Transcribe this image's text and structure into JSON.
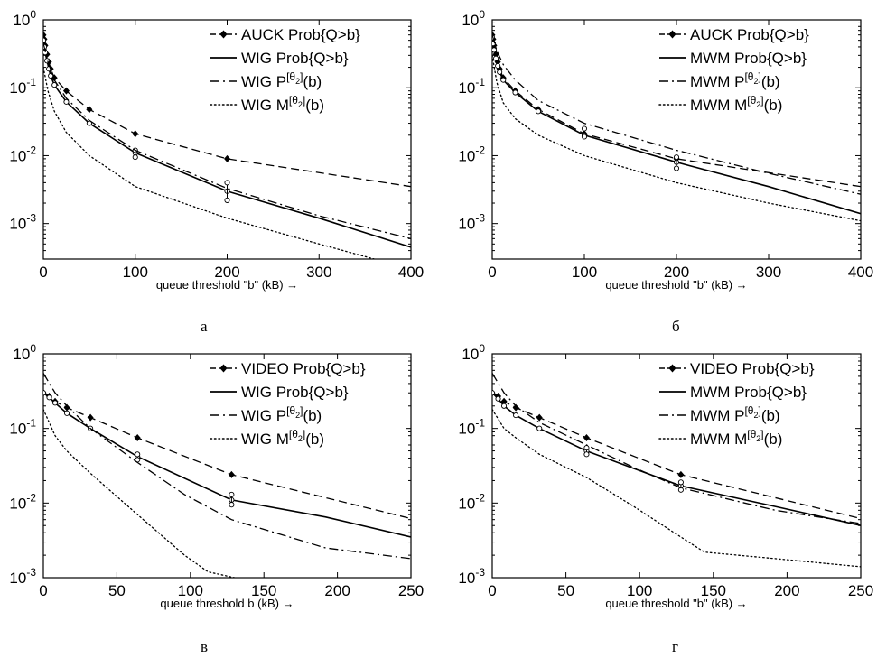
{
  "figure": {
    "captions": [
      "а",
      "б",
      "в",
      "г"
    ]
  },
  "chart_data": [
    {
      "id": "a",
      "type": "line",
      "caption": "а",
      "xlabel": "queue threshold \"b\" (kB) →",
      "ylabel": "",
      "yscale": "log",
      "xlim": [
        0,
        400
      ],
      "ylim": [
        0.0003,
        1
      ],
      "xticks": [
        0,
        100,
        200,
        300,
        400
      ],
      "yticks": [
        {
          "v": 1,
          "exp": "0"
        },
        {
          "v": 0.1,
          "exp": "-1"
        },
        {
          "v": 0.01,
          "exp": "-2"
        },
        {
          "v": 0.001,
          "exp": "-3"
        }
      ],
      "legend_position": "top-right",
      "series": [
        {
          "name": "AUCK Prob{Q>b}",
          "style": "dashed-diamond",
          "x": [
            0,
            1,
            2,
            4,
            6,
            8,
            12,
            25,
            50,
            100,
            200,
            400
          ],
          "y": [
            0.6,
            0.52,
            0.42,
            0.31,
            0.24,
            0.19,
            0.14,
            0.09,
            0.048,
            0.021,
            0.009,
            0.0035
          ],
          "markers_x": [
            0,
            1,
            2,
            4,
            6,
            8,
            12,
            25,
            50,
            100,
            200
          ]
        },
        {
          "name": "WIG Prob{Q>b}",
          "style": "solid",
          "x": [
            0,
            1,
            2,
            4,
            6,
            8,
            12,
            25,
            50,
            100,
            200,
            300,
            400
          ],
          "y": [
            0.5,
            0.4,
            0.33,
            0.25,
            0.19,
            0.15,
            0.11,
            0.062,
            0.03,
            0.011,
            0.003,
            0.0012,
            0.00045
          ],
          "markers_x": [
            0,
            1,
            2,
            4,
            6,
            8,
            12,
            25,
            50,
            100,
            200
          ],
          "errorbar": [
            {
              "x": 200,
              "lo": 0.0022,
              "hi": 0.004
            },
            {
              "x": 100,
              "lo": 0.0095,
              "hi": 0.012
            }
          ]
        },
        {
          "name": "WIG P^[θ2](b)",
          "style": "dashdot",
          "x": [
            0,
            5,
            12,
            25,
            50,
            100,
            200,
            300,
            400
          ],
          "y": [
            0.45,
            0.24,
            0.13,
            0.07,
            0.033,
            0.012,
            0.0033,
            0.0013,
            0.0006
          ]
        },
        {
          "name": "WIG M^[θ2](b)",
          "style": "dotted",
          "x": [
            0,
            5,
            12,
            25,
            50,
            100,
            200,
            300,
            360
          ],
          "y": [
            0.2,
            0.09,
            0.045,
            0.022,
            0.01,
            0.0035,
            0.0012,
            0.0005,
            0.0003
          ]
        }
      ]
    },
    {
      "id": "b",
      "type": "line",
      "caption": "б",
      "xlabel": "queue threshold \"b\" (kB) →",
      "ylabel": "",
      "yscale": "log",
      "xlim": [
        0,
        400
      ],
      "ylim": [
        0.0003,
        1
      ],
      "xticks": [
        0,
        100,
        200,
        300,
        400
      ],
      "yticks": [
        {
          "v": 1,
          "exp": "0"
        },
        {
          "v": 0.1,
          "exp": "-1"
        },
        {
          "v": 0.01,
          "exp": "-2"
        },
        {
          "v": 0.001,
          "exp": "-3"
        }
      ],
      "legend_position": "top-right",
      "series": [
        {
          "name": "AUCK Prob{Q>b}",
          "style": "dashed-diamond",
          "x": [
            0,
            1,
            2,
            4,
            6,
            8,
            12,
            25,
            50,
            100,
            200,
            400
          ],
          "y": [
            0.6,
            0.52,
            0.42,
            0.31,
            0.24,
            0.19,
            0.14,
            0.09,
            0.048,
            0.021,
            0.009,
            0.0035
          ],
          "markers_x": [
            0,
            1,
            2,
            4,
            6,
            8,
            12,
            25,
            50,
            100,
            200
          ]
        },
        {
          "name": "MWM Prob{Q>b}",
          "style": "solid",
          "x": [
            0,
            1,
            2,
            4,
            6,
            8,
            12,
            25,
            50,
            100,
            200,
            300,
            400
          ],
          "y": [
            0.55,
            0.45,
            0.36,
            0.27,
            0.21,
            0.17,
            0.13,
            0.085,
            0.045,
            0.02,
            0.008,
            0.0035,
            0.0014
          ],
          "markers_x": [
            0,
            1,
            2,
            4,
            6,
            8,
            12,
            25,
            50,
            100,
            200
          ],
          "errorbar": [
            {
              "x": 200,
              "lo": 0.0065,
              "hi": 0.0095
            },
            {
              "x": 100,
              "lo": 0.019,
              "hi": 0.025
            }
          ]
        },
        {
          "name": "MWM P^[θ2](b)",
          "style": "dashdot",
          "x": [
            0,
            5,
            12,
            25,
            50,
            100,
            200,
            300,
            400
          ],
          "y": [
            0.6,
            0.35,
            0.22,
            0.13,
            0.065,
            0.03,
            0.012,
            0.0055,
            0.0027
          ]
        },
        {
          "name": "MWM M^[θ2](b)",
          "style": "dotted",
          "x": [
            0,
            5,
            12,
            25,
            50,
            100,
            200,
            300,
            400
          ],
          "y": [
            0.3,
            0.12,
            0.06,
            0.035,
            0.02,
            0.01,
            0.004,
            0.002,
            0.0011
          ]
        }
      ]
    },
    {
      "id": "c",
      "type": "line",
      "caption": "в",
      "xlabel": "queue threshold b (kB) →",
      "ylabel": "",
      "yscale": "log",
      "xlim": [
        0,
        250
      ],
      "ylim": [
        0.001,
        1
      ],
      "xticks": [
        0,
        50,
        100,
        150,
        200,
        250
      ],
      "yticks": [
        {
          "v": 1,
          "exp": "0"
        },
        {
          "v": 0.1,
          "exp": "-1"
        },
        {
          "v": 0.01,
          "exp": "-2"
        },
        {
          "v": 0.001,
          "exp": "-3"
        }
      ],
      "legend_position": "top-right",
      "series": [
        {
          "name": "VIDEO Prob{Q>b}",
          "style": "dashed-diamond",
          "x": [
            0,
            4,
            8,
            16,
            32,
            64,
            128,
            250
          ],
          "y": [
            0.3,
            0.27,
            0.23,
            0.19,
            0.14,
            0.075,
            0.024,
            0.0062
          ],
          "markers_x": [
            0,
            4,
            8,
            16,
            32,
            64,
            128
          ]
        },
        {
          "name": "WIG Prob{Q>b}",
          "style": "solid",
          "x": [
            0,
            4,
            8,
            16,
            32,
            64,
            128,
            192,
            250
          ],
          "y": [
            0.3,
            0.26,
            0.22,
            0.16,
            0.1,
            0.042,
            0.011,
            0.0065,
            0.0035
          ],
          "markers_x": [
            0,
            4,
            8,
            16,
            32,
            64,
            128
          ],
          "errorbar": [
            {
              "x": 128,
              "lo": 0.0095,
              "hi": 0.013
            },
            {
              "x": 64,
              "lo": 0.038,
              "hi": 0.045
            }
          ]
        },
        {
          "name": "WIG P^[θ2](b)",
          "style": "dashdot",
          "x": [
            0,
            8,
            16,
            32,
            64,
            96,
            128,
            192,
            250
          ],
          "y": [
            0.55,
            0.3,
            0.2,
            0.1,
            0.035,
            0.013,
            0.006,
            0.0025,
            0.0018
          ]
        },
        {
          "name": "WIG M^[θ2](b)",
          "style": "dotted",
          "x": [
            0,
            8,
            16,
            32,
            64,
            96,
            112,
            130
          ],
          "y": [
            0.18,
            0.08,
            0.05,
            0.025,
            0.007,
            0.002,
            0.0012,
            0.001
          ]
        }
      ]
    },
    {
      "id": "d",
      "type": "line",
      "caption": "г",
      "xlabel": "queue threshold \"b\" (kB) →",
      "ylabel": "",
      "yscale": "log",
      "xlim": [
        0,
        250
      ],
      "ylim": [
        0.001,
        1
      ],
      "xticks": [
        0,
        50,
        100,
        150,
        200,
        250
      ],
      "yticks": [
        {
          "v": 1,
          "exp": "0"
        },
        {
          "v": 0.1,
          "exp": "-1"
        },
        {
          "v": 0.01,
          "exp": "-2"
        },
        {
          "v": 0.001,
          "exp": "-3"
        }
      ],
      "legend_position": "top-right",
      "series": [
        {
          "name": "VIDEO Prob{Q>b}",
          "style": "dashed-diamond",
          "x": [
            0,
            4,
            8,
            16,
            32,
            64,
            128,
            250
          ],
          "y": [
            0.3,
            0.27,
            0.23,
            0.19,
            0.14,
            0.075,
            0.024,
            0.0062
          ],
          "markers_x": [
            0,
            4,
            8,
            16,
            32,
            64,
            128
          ]
        },
        {
          "name": "MWM Prob{Q>b}",
          "style": "solid",
          "x": [
            0,
            4,
            8,
            16,
            32,
            64,
            128,
            192,
            250
          ],
          "y": [
            0.3,
            0.25,
            0.2,
            0.15,
            0.1,
            0.05,
            0.017,
            0.009,
            0.005
          ],
          "markers_x": [
            0,
            4,
            8,
            16,
            32,
            64,
            128
          ],
          "errorbar": [
            {
              "x": 128,
              "lo": 0.015,
              "hi": 0.019
            },
            {
              "x": 64,
              "lo": 0.045,
              "hi": 0.055
            }
          ]
        },
        {
          "name": "MWM P^[θ2](b)",
          "style": "dashdot",
          "x": [
            0,
            8,
            16,
            32,
            64,
            96,
            128,
            192,
            250
          ],
          "y": [
            0.55,
            0.3,
            0.2,
            0.12,
            0.06,
            0.03,
            0.016,
            0.008,
            0.0053
          ]
        },
        {
          "name": "MWM M^[θ2](b)",
          "style": "dotted",
          "x": [
            0,
            8,
            16,
            32,
            64,
            96,
            128,
            144,
            192,
            250
          ],
          "y": [
            0.18,
            0.1,
            0.075,
            0.045,
            0.022,
            0.009,
            0.0035,
            0.0022,
            0.0018,
            0.0014
          ]
        }
      ]
    }
  ]
}
